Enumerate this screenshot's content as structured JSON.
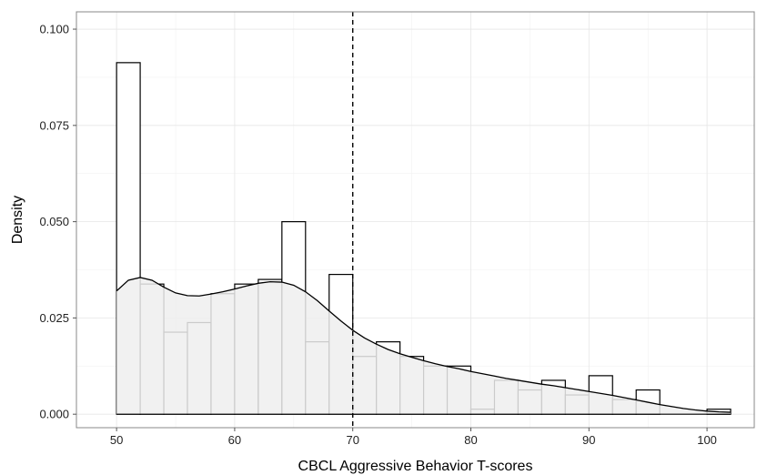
{
  "chart_data": {
    "type": "histogram",
    "xlabel": "CBCL Aggressive Behavior T-scores",
    "ylabel": "Density",
    "xlim": [
      46.6,
      104
    ],
    "ylim": [
      -0.0035,
      0.1045
    ],
    "x_ticks": [
      50,
      60,
      70,
      80,
      90,
      100
    ],
    "y_ticks": [
      0.0,
      0.025,
      0.05,
      0.075,
      0.1
    ],
    "x_tick_labels": [
      "50",
      "60",
      "70",
      "80",
      "90",
      "100"
    ],
    "y_tick_labels": [
      "0.000",
      "0.025",
      "0.050",
      "0.075",
      "0.100"
    ],
    "grid": true,
    "reference_line": {
      "x": 70,
      "style": "dashed"
    },
    "bin_width": 2,
    "bins": [
      {
        "x0": 50,
        "x1": 52,
        "density": 0.0913
      },
      {
        "x0": 52,
        "x1": 54,
        "density": 0.0338
      },
      {
        "x0": 54,
        "x1": 56,
        "density": 0.0213
      },
      {
        "x0": 56,
        "x1": 58,
        "density": 0.0238
      },
      {
        "x0": 58,
        "x1": 60,
        "density": 0.0313
      },
      {
        "x0": 60,
        "x1": 62,
        "density": 0.0338
      },
      {
        "x0": 62,
        "x1": 64,
        "density": 0.035
      },
      {
        "x0": 64,
        "x1": 66,
        "density": 0.05
      },
      {
        "x0": 66,
        "x1": 68,
        "density": 0.0188
      },
      {
        "x0": 68,
        "x1": 70,
        "density": 0.0363
      },
      {
        "x0": 70,
        "x1": 72,
        "density": 0.015
      },
      {
        "x0": 72,
        "x1": 74,
        "density": 0.0188
      },
      {
        "x0": 74,
        "x1": 76,
        "density": 0.015
      },
      {
        "x0": 76,
        "x1": 78,
        "density": 0.0125
      },
      {
        "x0": 78,
        "x1": 80,
        "density": 0.0125
      },
      {
        "x0": 80,
        "x1": 82,
        "density": 0.0013
      },
      {
        "x0": 82,
        "x1": 84,
        "density": 0.0088
      },
      {
        "x0": 84,
        "x1": 86,
        "density": 0.0063
      },
      {
        "x0": 86,
        "x1": 88,
        "density": 0.0088
      },
      {
        "x0": 88,
        "x1": 90,
        "density": 0.005
      },
      {
        "x0": 90,
        "x1": 92,
        "density": 0.01
      },
      {
        "x0": 92,
        "x1": 94,
        "density": 0.0038
      },
      {
        "x0": 94,
        "x1": 96,
        "density": 0.0063
      },
      {
        "x0": 96,
        "x1": 98,
        "density": 0.0
      },
      {
        "x0": 98,
        "x1": 100,
        "density": 0.0
      },
      {
        "x0": 100,
        "x1": 102,
        "density": 0.0013
      }
    ],
    "density_curve": {
      "x": [
        50,
        51,
        52,
        53,
        54,
        55,
        56,
        57,
        58,
        59,
        60,
        61,
        62,
        63,
        64,
        65,
        66,
        67,
        68,
        69,
        70,
        71,
        72,
        73,
        74,
        75,
        76,
        77,
        78,
        79,
        80,
        81,
        82,
        83,
        84,
        85,
        86,
        87,
        88,
        89,
        90,
        91,
        92,
        93,
        94,
        95,
        96,
        97,
        98,
        99,
        100,
        101,
        102
      ],
      "y": [
        0.032,
        0.0348,
        0.0355,
        0.0348,
        0.033,
        0.0315,
        0.0308,
        0.0307,
        0.0312,
        0.0318,
        0.0325,
        0.0333,
        0.034,
        0.0344,
        0.0343,
        0.0335,
        0.0318,
        0.0295,
        0.0268,
        0.0242,
        0.0218,
        0.0198,
        0.0182,
        0.0168,
        0.0157,
        0.0148,
        0.0139,
        0.0131,
        0.0124,
        0.0118,
        0.0111,
        0.0105,
        0.0099,
        0.0093,
        0.0088,
        0.0083,
        0.0078,
        0.0074,
        0.0069,
        0.0064,
        0.0059,
        0.0054,
        0.0049,
        0.0043,
        0.0037,
        0.0031,
        0.0025,
        0.002,
        0.0015,
        0.0011,
        0.0008,
        0.0006,
        0.0005
      ]
    },
    "colors": {
      "background": "#ffffff",
      "grid": "#e6e6e6",
      "bar_fill": "#ffffff",
      "bar_stroke": "#000000",
      "curve_fill": "#eeeeee",
      "curve_stroke": "#000000",
      "panel_border": "#888888"
    }
  }
}
